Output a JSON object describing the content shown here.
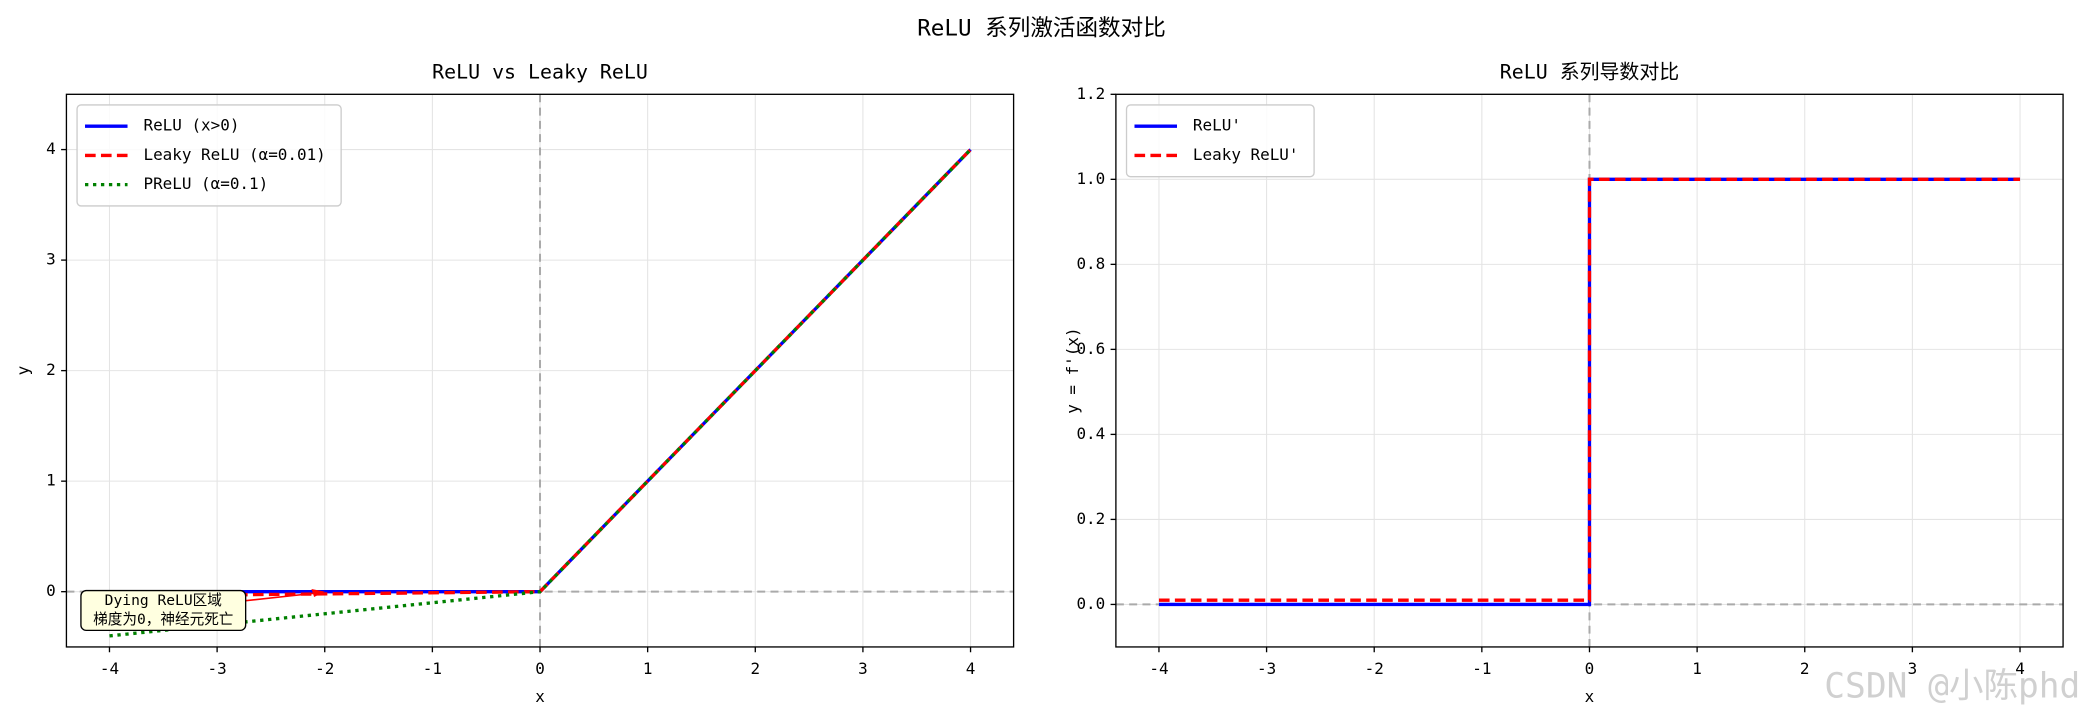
{
  "suptitle": "ReLU 系列激活函数对比",
  "watermark": "CSDN @小陈phd",
  "chart_data": [
    {
      "type": "line",
      "title": "ReLU vs Leaky ReLU",
      "xlabel": "x",
      "ylabel": "y",
      "xlim": [
        -4.4,
        4.4
      ],
      "ylim": [
        -0.5,
        4.5
      ],
      "xticks": [
        -4,
        -3,
        -2,
        -1,
        0,
        1,
        2,
        3,
        4
      ],
      "yticks": [
        0,
        1,
        2,
        3,
        4
      ],
      "grid": true,
      "legend": "upper left",
      "hlines": [
        0
      ],
      "vlines": [
        0
      ],
      "series": [
        {
          "name": "ReLU (x>0)",
          "color": "#0000ff",
          "dash": "solid",
          "x": [
            -4,
            0,
            4
          ],
          "values": [
            0,
            0,
            4
          ]
        },
        {
          "name": "Leaky ReLU (α=0.01)",
          "color": "#ff0000",
          "dash": "dashed",
          "x": [
            -4,
            0,
            4
          ],
          "values": [
            -0.04,
            0,
            4
          ]
        },
        {
          "name": "PReLU (α=0.1)",
          "color": "#008000",
          "dash": "dotted",
          "x": [
            -4,
            0,
            4
          ],
          "values": [
            -0.4,
            0,
            4
          ]
        }
      ],
      "annotation": {
        "text": [
          "Dying ReLU区域",
          "梯度为0，神经元死亡"
        ],
        "xy": [
          -2,
          0
        ],
        "xytext": [
          -3.5,
          -0.17
        ]
      }
    },
    {
      "type": "line",
      "title": "ReLU 系列导数对比",
      "xlabel": "x",
      "ylabel": "y = f'(x)",
      "xlim": [
        -4.4,
        4.4
      ],
      "ylim": [
        -0.1,
        1.2
      ],
      "xticks": [
        -4,
        -3,
        -2,
        -1,
        0,
        1,
        2,
        3,
        4
      ],
      "yticks": [
        {
          "value": 0,
          "label": "0.0"
        },
        0.2,
        0.4,
        0.6,
        0.8,
        {
          "value": 1,
          "label": "1.0"
        },
        1.2
      ],
      "grid": true,
      "legend": "upper left",
      "hlines": [
        0
      ],
      "vlines": [
        0
      ],
      "series": [
        {
          "name": "ReLU'",
          "color": "#0000ff",
          "dash": "solid",
          "x": [
            -4,
            0,
            0,
            4
          ],
          "values": [
            0,
            0,
            1,
            1
          ]
        },
        {
          "name": "Leaky ReLU'",
          "color": "#ff0000",
          "dash": "dashed",
          "x": [
            -4,
            0,
            0,
            4
          ],
          "values": [
            0.01,
            0.01,
            1,
            1
          ]
        }
      ]
    }
  ]
}
